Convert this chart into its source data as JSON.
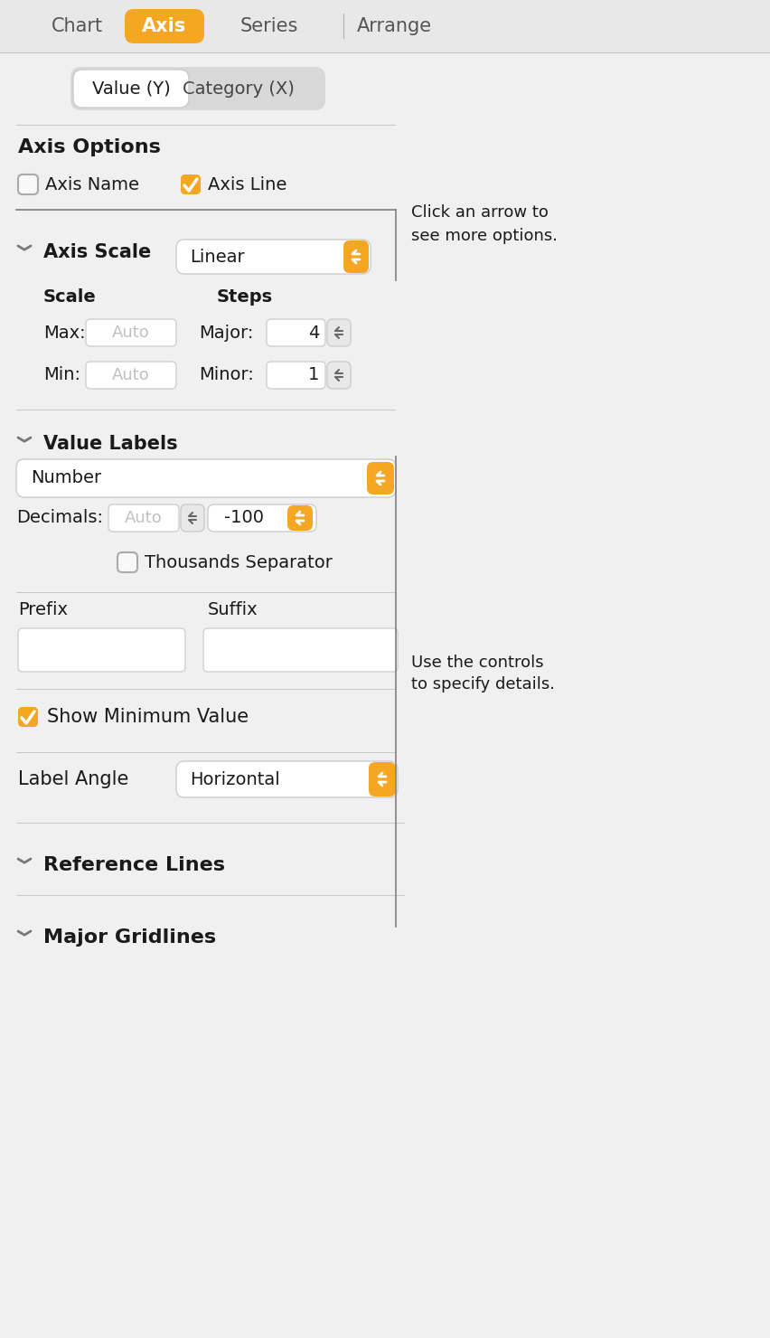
{
  "bg_color": "#f0f0f0",
  "panel_bg": "#f0f0f0",
  "white": "#ffffff",
  "orange": "#f5a623",
  "light_gray": "#e0e0e0",
  "mid_gray": "#c8c8c8",
  "text_dark": "#1a1a1a",
  "text_gray": "#888888",
  "tab_bar_bg": "#e8e8e8",
  "separator": "#c8c8c8",
  "tabs": [
    "Chart",
    "Axis",
    "Series",
    "Arrange"
  ],
  "active_tab": "Axis",
  "sub_tabs": [
    "Value (Y)",
    "Category (X)"
  ],
  "active_sub_tab": "Value (Y)"
}
